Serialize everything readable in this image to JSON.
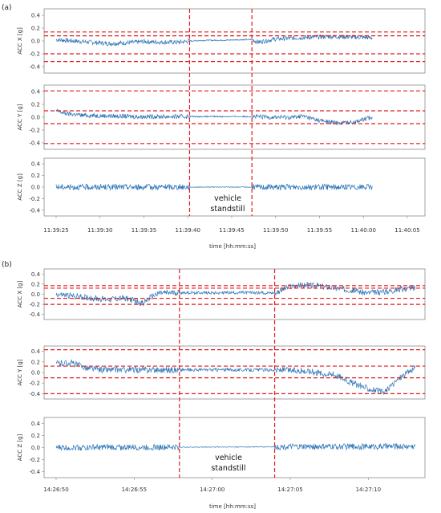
{
  "figures": [
    {
      "label": "(a)",
      "time_ticks": [
        "11:39:25",
        "11:39:30",
        "11:39:35",
        "11:39:40",
        "11:39:45",
        "11:39:50",
        "11:39:55",
        "11:40:00",
        "11:40:05"
      ],
      "xlabel": "time [hh:mm:ss]",
      "annotation": [
        "vehicle",
        "standstill"
      ],
      "standstill_markers_s": [
        15.2,
        22.3
      ],
      "panels": [
        {
          "ylabel": "ACC X [g]",
          "yticks": [
            "0.4",
            "0.2",
            "0.0",
            "-0.2",
            "-0.4"
          ],
          "thresholds": [
            0.14,
            0.08,
            -0.2,
            -0.32
          ]
        },
        {
          "ylabel": "ACC Y [g]",
          "yticks": [
            "0.4",
            "0.2",
            "0.0",
            "-0.2",
            "-0.4"
          ],
          "thresholds": [
            0.41,
            0.1,
            -0.1,
            -0.41
          ]
        },
        {
          "ylabel": "ACC Z [g]",
          "yticks": [
            "0.4",
            "0.2",
            "0.0",
            "-0.2",
            "-0.4"
          ],
          "thresholds": []
        }
      ]
    },
    {
      "label": "(b)",
      "time_ticks": [
        "14:26:50",
        "14:26:55",
        "14:27:00",
        "14:27:05",
        "14:27:10"
      ],
      "xlabel": "time [hh:mm:ss]",
      "annotation": [
        "vehicle",
        "standstill"
      ],
      "standstill_markers_s": [
        7.9,
        14.0
      ],
      "panels": [
        {
          "ylabel": "ACC X [g]",
          "yticks": [
            "0.4",
            "0.2",
            "0.0",
            "-0.2",
            "-0.4"
          ],
          "thresholds": [
            0.17,
            0.12,
            -0.08,
            -0.2
          ]
        },
        {
          "ylabel": "ACC Y [g]",
          "yticks": [
            "0.4",
            "0.2",
            "0.0",
            "-0.2",
            "-0.4"
          ],
          "thresholds": [
            0.43,
            0.12,
            -0.1,
            -0.4
          ]
        },
        {
          "ylabel": "ACC Z [g]",
          "yticks": [
            "0.4",
            "0.2",
            "0.0",
            "-0.2",
            "-0.4"
          ],
          "thresholds": []
        }
      ]
    }
  ],
  "chart_data": [
    {
      "type": "line",
      "title": "(a)",
      "xlabel": "time [hh:mm:ss]",
      "xlim": [
        "11:39:25",
        "11:40:05"
      ],
      "ylim": [
        -0.5,
        0.5
      ],
      "series": [
        {
          "name": "ACC X [g]",
          "x_s": [
            0,
            2,
            4,
            6,
            8,
            10,
            12,
            14,
            15.2,
            17,
            19,
            21,
            22.3,
            23,
            25,
            28,
            31,
            34,
            36
          ],
          "values": [
            0.02,
            0.0,
            -0.02,
            -0.04,
            -0.03,
            -0.01,
            -0.02,
            -0.02,
            0.0,
            0.01,
            0.01,
            0.02,
            0.02,
            -0.02,
            0.03,
            0.05,
            0.07,
            0.06,
            0.05
          ]
        },
        {
          "name": "ACC Y [g]",
          "x_s": [
            0,
            1,
            3,
            6,
            9,
            12,
            15.2,
            19,
            22.3,
            25,
            27,
            28,
            30,
            32,
            34,
            36
          ],
          "values": [
            0.1,
            0.06,
            0.03,
            0.02,
            0.01,
            0.01,
            0.01,
            0.01,
            0.01,
            0.0,
            0.0,
            0.02,
            -0.05,
            -0.09,
            -0.07,
            0.0
          ],
          "thresholds": [
            0.41,
            0.1,
            -0.1,
            -0.41
          ]
        },
        {
          "name": "ACC Z [g]",
          "x_s": [
            0,
            36
          ],
          "values": [
            0.0,
            0.0
          ]
        }
      ],
      "x_ticks": [
        "11:39:25",
        "11:39:30",
        "11:39:35",
        "11:39:40",
        "11:39:45",
        "11:39:50",
        "11:39:55",
        "11:40:00",
        "11:40:05"
      ]
    },
    {
      "type": "line",
      "title": "(b)",
      "xlabel": "time [hh:mm:ss]",
      "xlim": [
        "14:26:50",
        "14:27:13"
      ],
      "ylim": [
        -0.5,
        0.5
      ],
      "series": [
        {
          "name": "ACC X [g]",
          "x_s": [
            0,
            1.5,
            3,
            4.5,
            5.5,
            6.5,
            7.9,
            10,
            14,
            15,
            16,
            17,
            18,
            19,
            20,
            21,
            22,
            23
          ],
          "values": [
            0.0,
            -0.05,
            -0.1,
            -0.08,
            -0.18,
            0.02,
            0.03,
            0.03,
            0.03,
            0.15,
            0.18,
            0.16,
            0.12,
            0.08,
            0.02,
            0.05,
            0.1,
            0.12
          ]
        },
        {
          "name": "ACC Y [g]",
          "x_s": [
            0,
            1,
            2,
            3,
            5,
            7.9,
            10,
            14,
            16,
            18,
            19,
            20,
            21,
            22,
            23
          ],
          "values": [
            0.17,
            0.18,
            0.08,
            0.05,
            0.05,
            0.05,
            0.05,
            0.05,
            0.03,
            -0.05,
            -0.2,
            -0.3,
            -0.38,
            -0.1,
            0.1
          ]
        },
        {
          "name": "ACC Z [g]",
          "x_s": [
            0,
            23
          ],
          "values": [
            0.0,
            0.02
          ]
        }
      ],
      "x_ticks": [
        "14:26:50",
        "14:26:55",
        "14:27:00",
        "14:27:05",
        "14:27:10"
      ]
    }
  ]
}
